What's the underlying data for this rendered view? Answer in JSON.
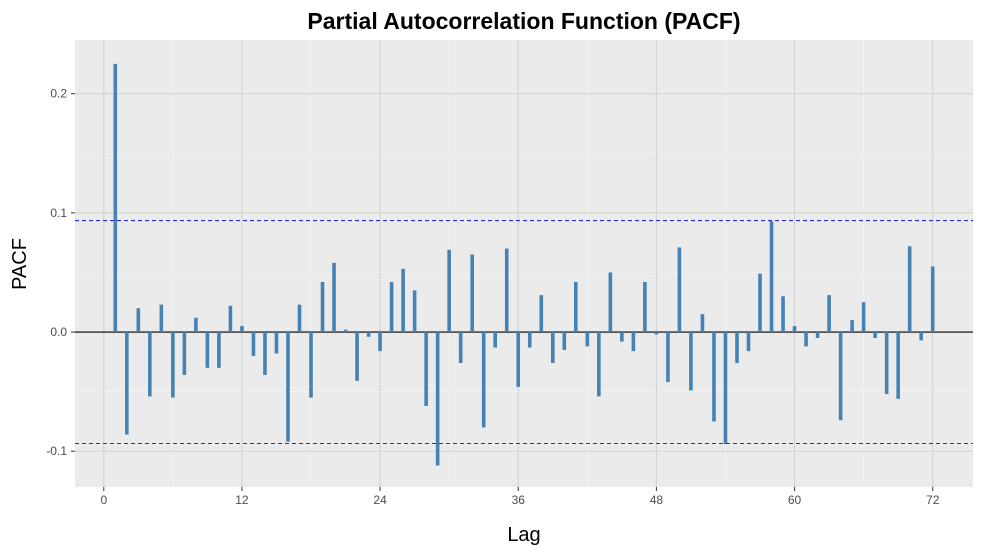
{
  "chart_data": {
    "type": "bar",
    "title": "Partial Autocorrelation Function (PACF)",
    "xlabel": "Lag",
    "ylabel": "PACF",
    "xlim": [
      -2.5,
      75.5
    ],
    "ylim": [
      -0.13,
      0.245
    ],
    "x_ticks": [
      0,
      12,
      24,
      36,
      48,
      60,
      72
    ],
    "x_tick_labels": [
      "0",
      "12",
      "24",
      "36",
      "48",
      "60",
      "72"
    ],
    "y_ticks": [
      -0.1,
      0.0,
      0.1,
      0.2
    ],
    "y_tick_labels": [
      "-0.1",
      "0.0",
      "0.1",
      "0.2"
    ],
    "grid": true,
    "confidence_bound": 0.0935,
    "lags": [
      1,
      2,
      3,
      4,
      5,
      6,
      7,
      8,
      9,
      10,
      11,
      12,
      13,
      14,
      15,
      16,
      17,
      18,
      19,
      20,
      21,
      22,
      23,
      24,
      25,
      26,
      27,
      28,
      29,
      30,
      31,
      32,
      33,
      34,
      35,
      36,
      37,
      38,
      39,
      40,
      41,
      42,
      43,
      44,
      45,
      46,
      47,
      48,
      49,
      50,
      51,
      52,
      53,
      54,
      55,
      56,
      57,
      58,
      59,
      60,
      61,
      62,
      63,
      64,
      65,
      66,
      67,
      68,
      69,
      70,
      71,
      72
    ],
    "values": [
      0.225,
      -0.086,
      0.02,
      -0.054,
      0.023,
      -0.055,
      -0.036,
      0.012,
      -0.03,
      -0.03,
      0.022,
      0.005,
      -0.02,
      -0.036,
      -0.018,
      -0.092,
      0.023,
      -0.055,
      0.042,
      0.058,
      0.002,
      -0.041,
      -0.004,
      -0.016,
      0.042,
      0.053,
      0.035,
      -0.062,
      -0.112,
      0.069,
      -0.026,
      0.065,
      -0.08,
      -0.013,
      0.07,
      -0.046,
      -0.013,
      0.031,
      -0.026,
      -0.015,
      0.042,
      -0.012,
      -0.054,
      0.05,
      -0.008,
      -0.016,
      0.042,
      -0.002,
      -0.042,
      0.071,
      -0.049,
      0.015,
      -0.075,
      -0.094,
      -0.026,
      -0.016,
      0.049,
      0.093,
      0.03,
      0.005,
      -0.012,
      -0.005,
      0.031,
      -0.074,
      0.01,
      0.025,
      -0.005,
      -0.052,
      -0.056,
      0.072,
      -0.007,
      0.055
    ],
    "colors": {
      "bar": "#4682b4",
      "panel_background": "#ebebeb",
      "grid_major": "#d3d3d3",
      "zero_line": "#000000",
      "confidence_line": "#2b2bd6"
    }
  }
}
